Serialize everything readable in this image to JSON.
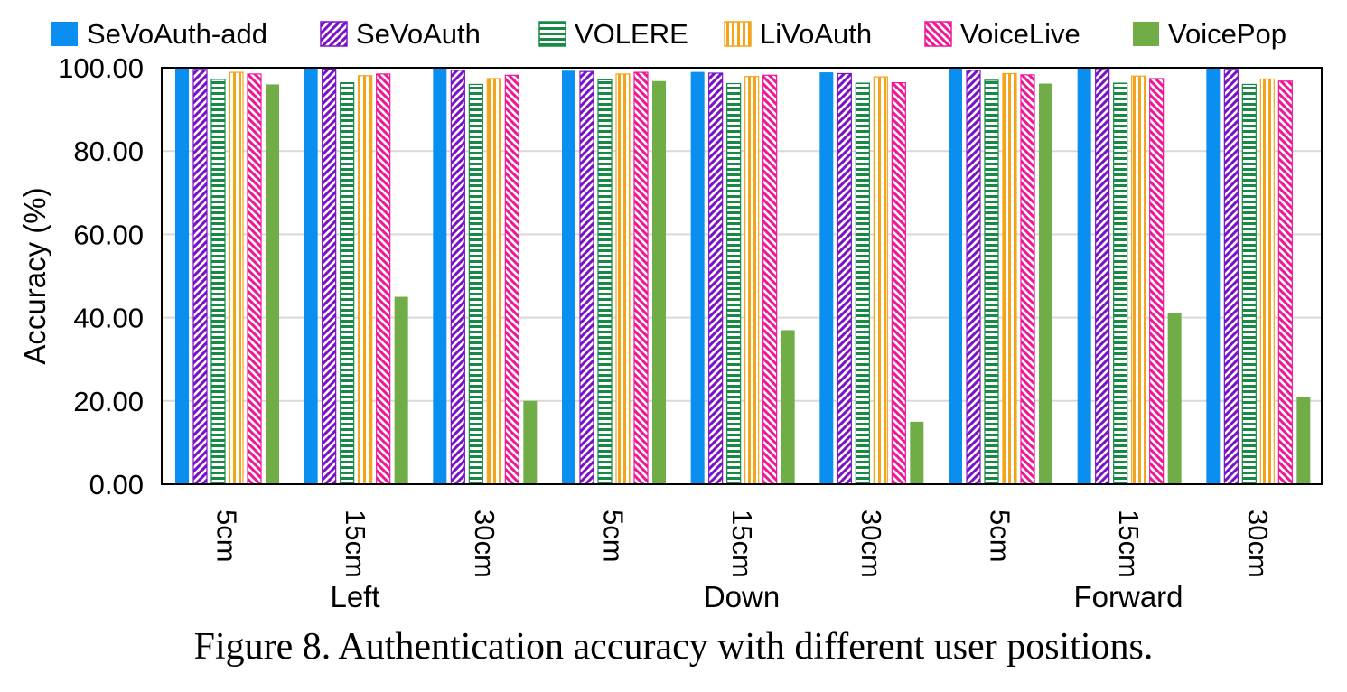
{
  "caption": "Figure 8. Authentication accuracy with different user positions.",
  "chart_data": {
    "type": "bar",
    "ylabel": "Accuracy (%)",
    "xlabel": "",
    "ylim": [
      0,
      100
    ],
    "yticks": [
      "0.00",
      "20.00",
      "40.00",
      "60.00",
      "80.00",
      "100.00"
    ],
    "grid": true,
    "legend_position": "top",
    "categories": [
      "5cm",
      "15cm",
      "30cm",
      "5cm",
      "15cm",
      "30cm",
      "5cm",
      "15cm",
      "30cm"
    ],
    "groups": [
      {
        "label": "Left",
        "span": [
          0,
          2
        ]
      },
      {
        "label": "Down",
        "span": [
          3,
          5
        ]
      },
      {
        "label": "Forward",
        "span": [
          6,
          8
        ]
      }
    ],
    "series": [
      {
        "name": "SeVoAuth-add",
        "color": "#0a8ff0",
        "pattern": "solid",
        "values": [
          100,
          100,
          100,
          99.3,
          99.0,
          98.9,
          100,
          100,
          100
        ]
      },
      {
        "name": "SeVoAuth",
        "color": "#7b10c8",
        "pattern": "diagonal",
        "values": [
          99.6,
          99.7,
          99.4,
          99.1,
          98.7,
          98.6,
          99.4,
          99.8,
          99.6
        ]
      },
      {
        "name": "VOLERE",
        "color": "#168a45",
        "pattern": "horizontal",
        "values": [
          97.2,
          96.4,
          96.0,
          97.1,
          96.2,
          96.3,
          97.0,
          96.3,
          96.0
        ]
      },
      {
        "name": "LiVoAuth",
        "color": "#f5a31a",
        "pattern": "vertical",
        "values": [
          98.9,
          98.1,
          97.4,
          98.5,
          97.9,
          97.8,
          98.6,
          98.0,
          97.3
        ]
      },
      {
        "name": "VoiceLive",
        "color": "#f0169a",
        "pattern": "diagonal-back",
        "values": [
          98.5,
          98.5,
          98.2,
          98.9,
          98.2,
          96.4,
          98.3,
          97.4,
          96.8
        ]
      },
      {
        "name": "VoicePop",
        "color": "#70ad47",
        "pattern": "solid",
        "values": [
          96.0,
          45.0,
          20.0,
          96.8,
          37.0,
          15.0,
          96.2,
          41.0,
          21.0
        ]
      }
    ]
  }
}
